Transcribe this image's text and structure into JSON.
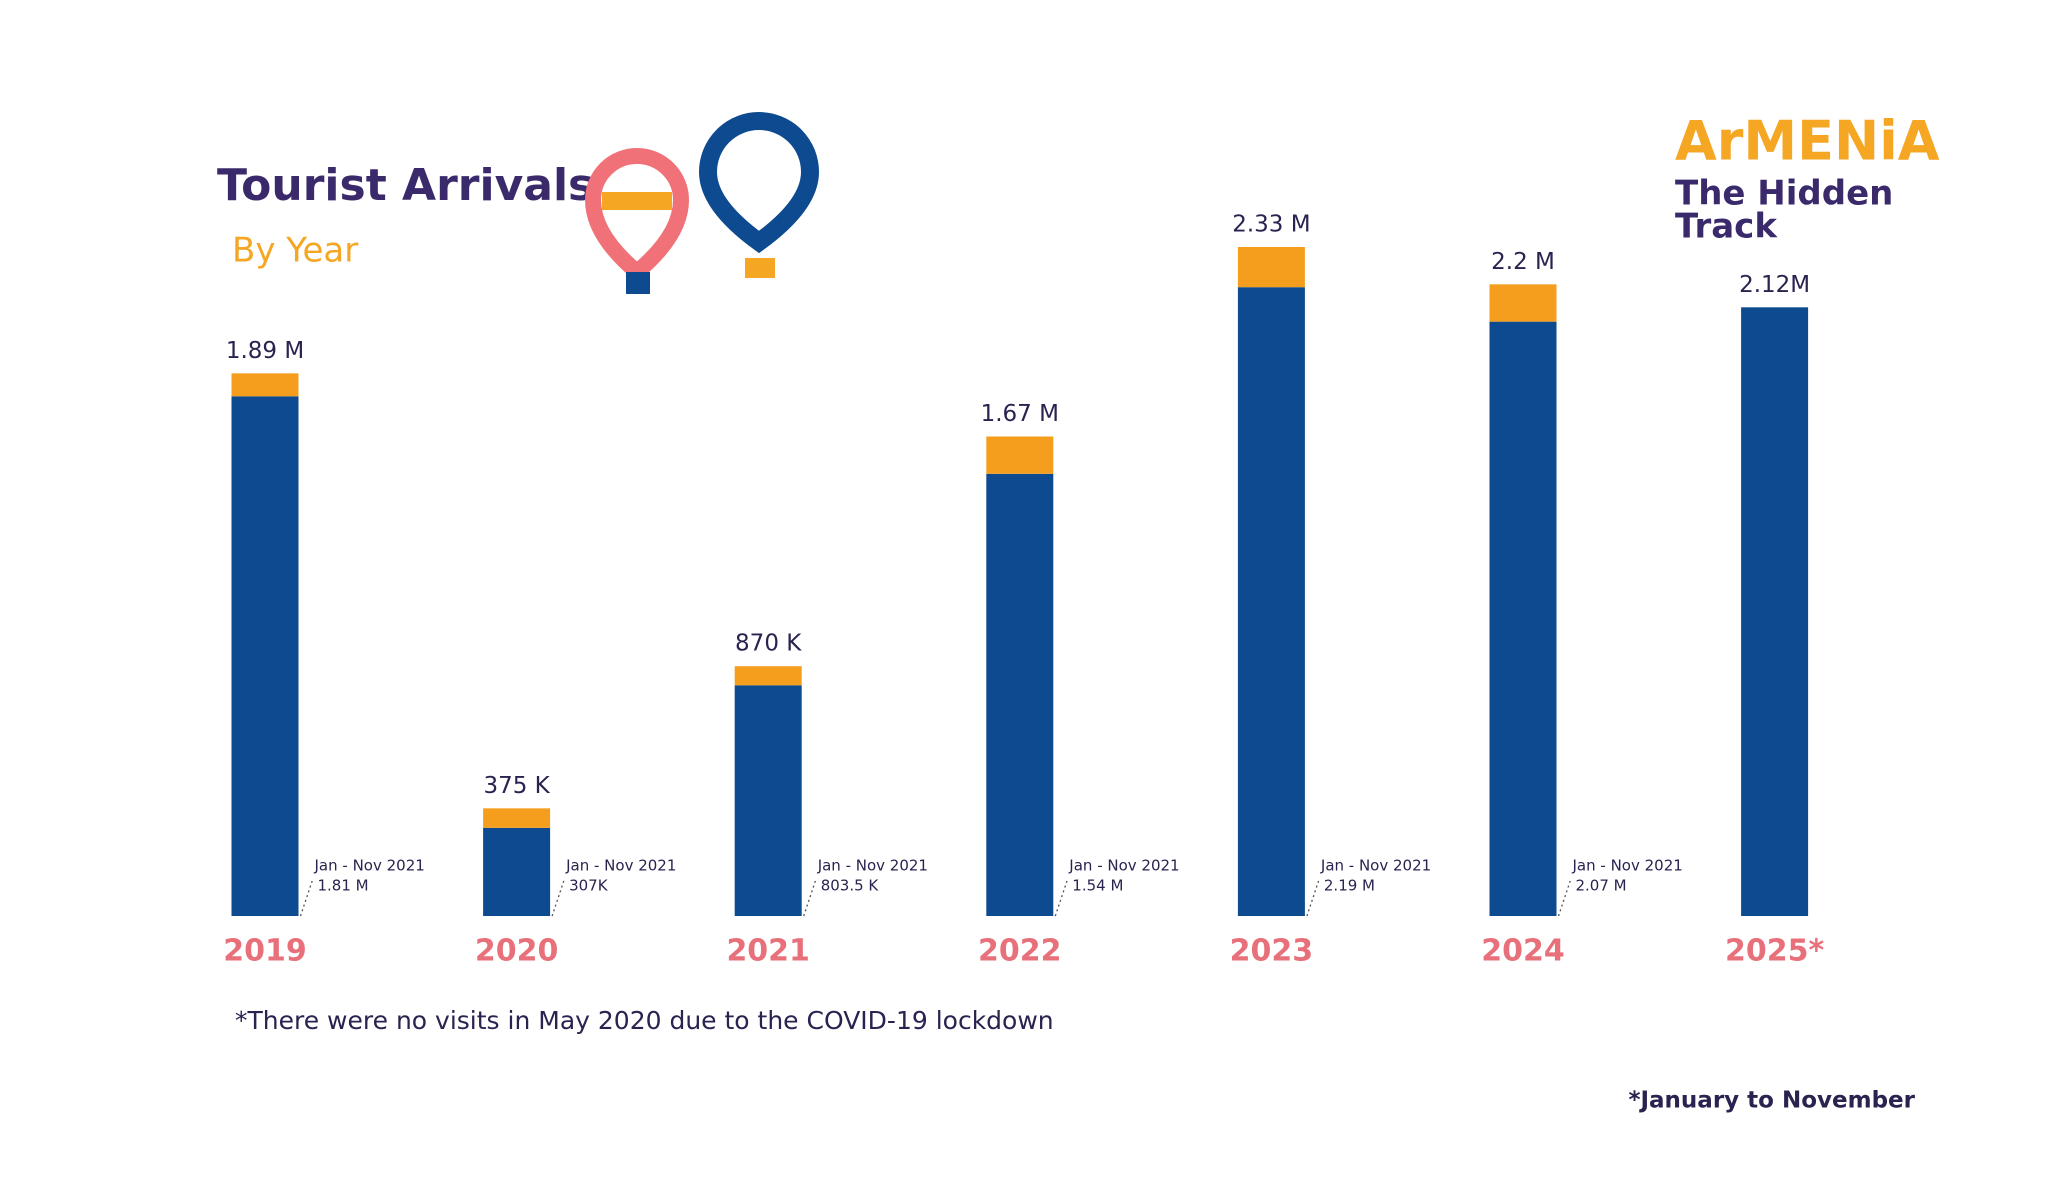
{
  "chart_data": {
    "type": "stacked_bar",
    "title": "Tourist Arrivals",
    "subtitle": "By Year",
    "brand": "ArMENiA",
    "tagline": [
      "The Hidden",
      "Track"
    ],
    "categories": [
      "2019",
      "2020",
      "2021",
      "2022",
      "2023",
      "2024",
      "2025*"
    ],
    "series": [
      {
        "color": "#0d4a8f",
        "values": [
          1810000,
          307000,
          803500,
          1540000,
          2190000,
          2070000,
          2120000
        ],
        "value_labels": [
          "1.81 M",
          "307K",
          "803.5 K",
          "1.54 M",
          "2.19 M",
          "2.07 M",
          null
        ]
      },
      {
        "color": "#f59e1e",
        "values": [
          80000,
          68000,
          66500,
          130000,
          140000,
          130000,
          null
        ]
      }
    ],
    "totals": {
      "values": [
        1890000,
        375000,
        870000,
        1670000,
        2330000,
        2200000,
        2120000
      ],
      "value_labels": [
        "1.89 M",
        "375 K",
        "870 K",
        "1.67 M",
        "2.33 M",
        "2.2 M",
        "2.12M"
      ]
    },
    "period_labels": [
      "Jan - Nov 2021",
      "Jan - Nov 2021",
      "Jan - Nov 2021",
      "Jan - Nov 2021",
      "Jan - Nov 2021",
      "Jan - Nov 2021",
      null
    ],
    "footnote": "*There were no visits in May 2020 due to the COVID-19 lockdown",
    "note": "*January to November"
  }
}
